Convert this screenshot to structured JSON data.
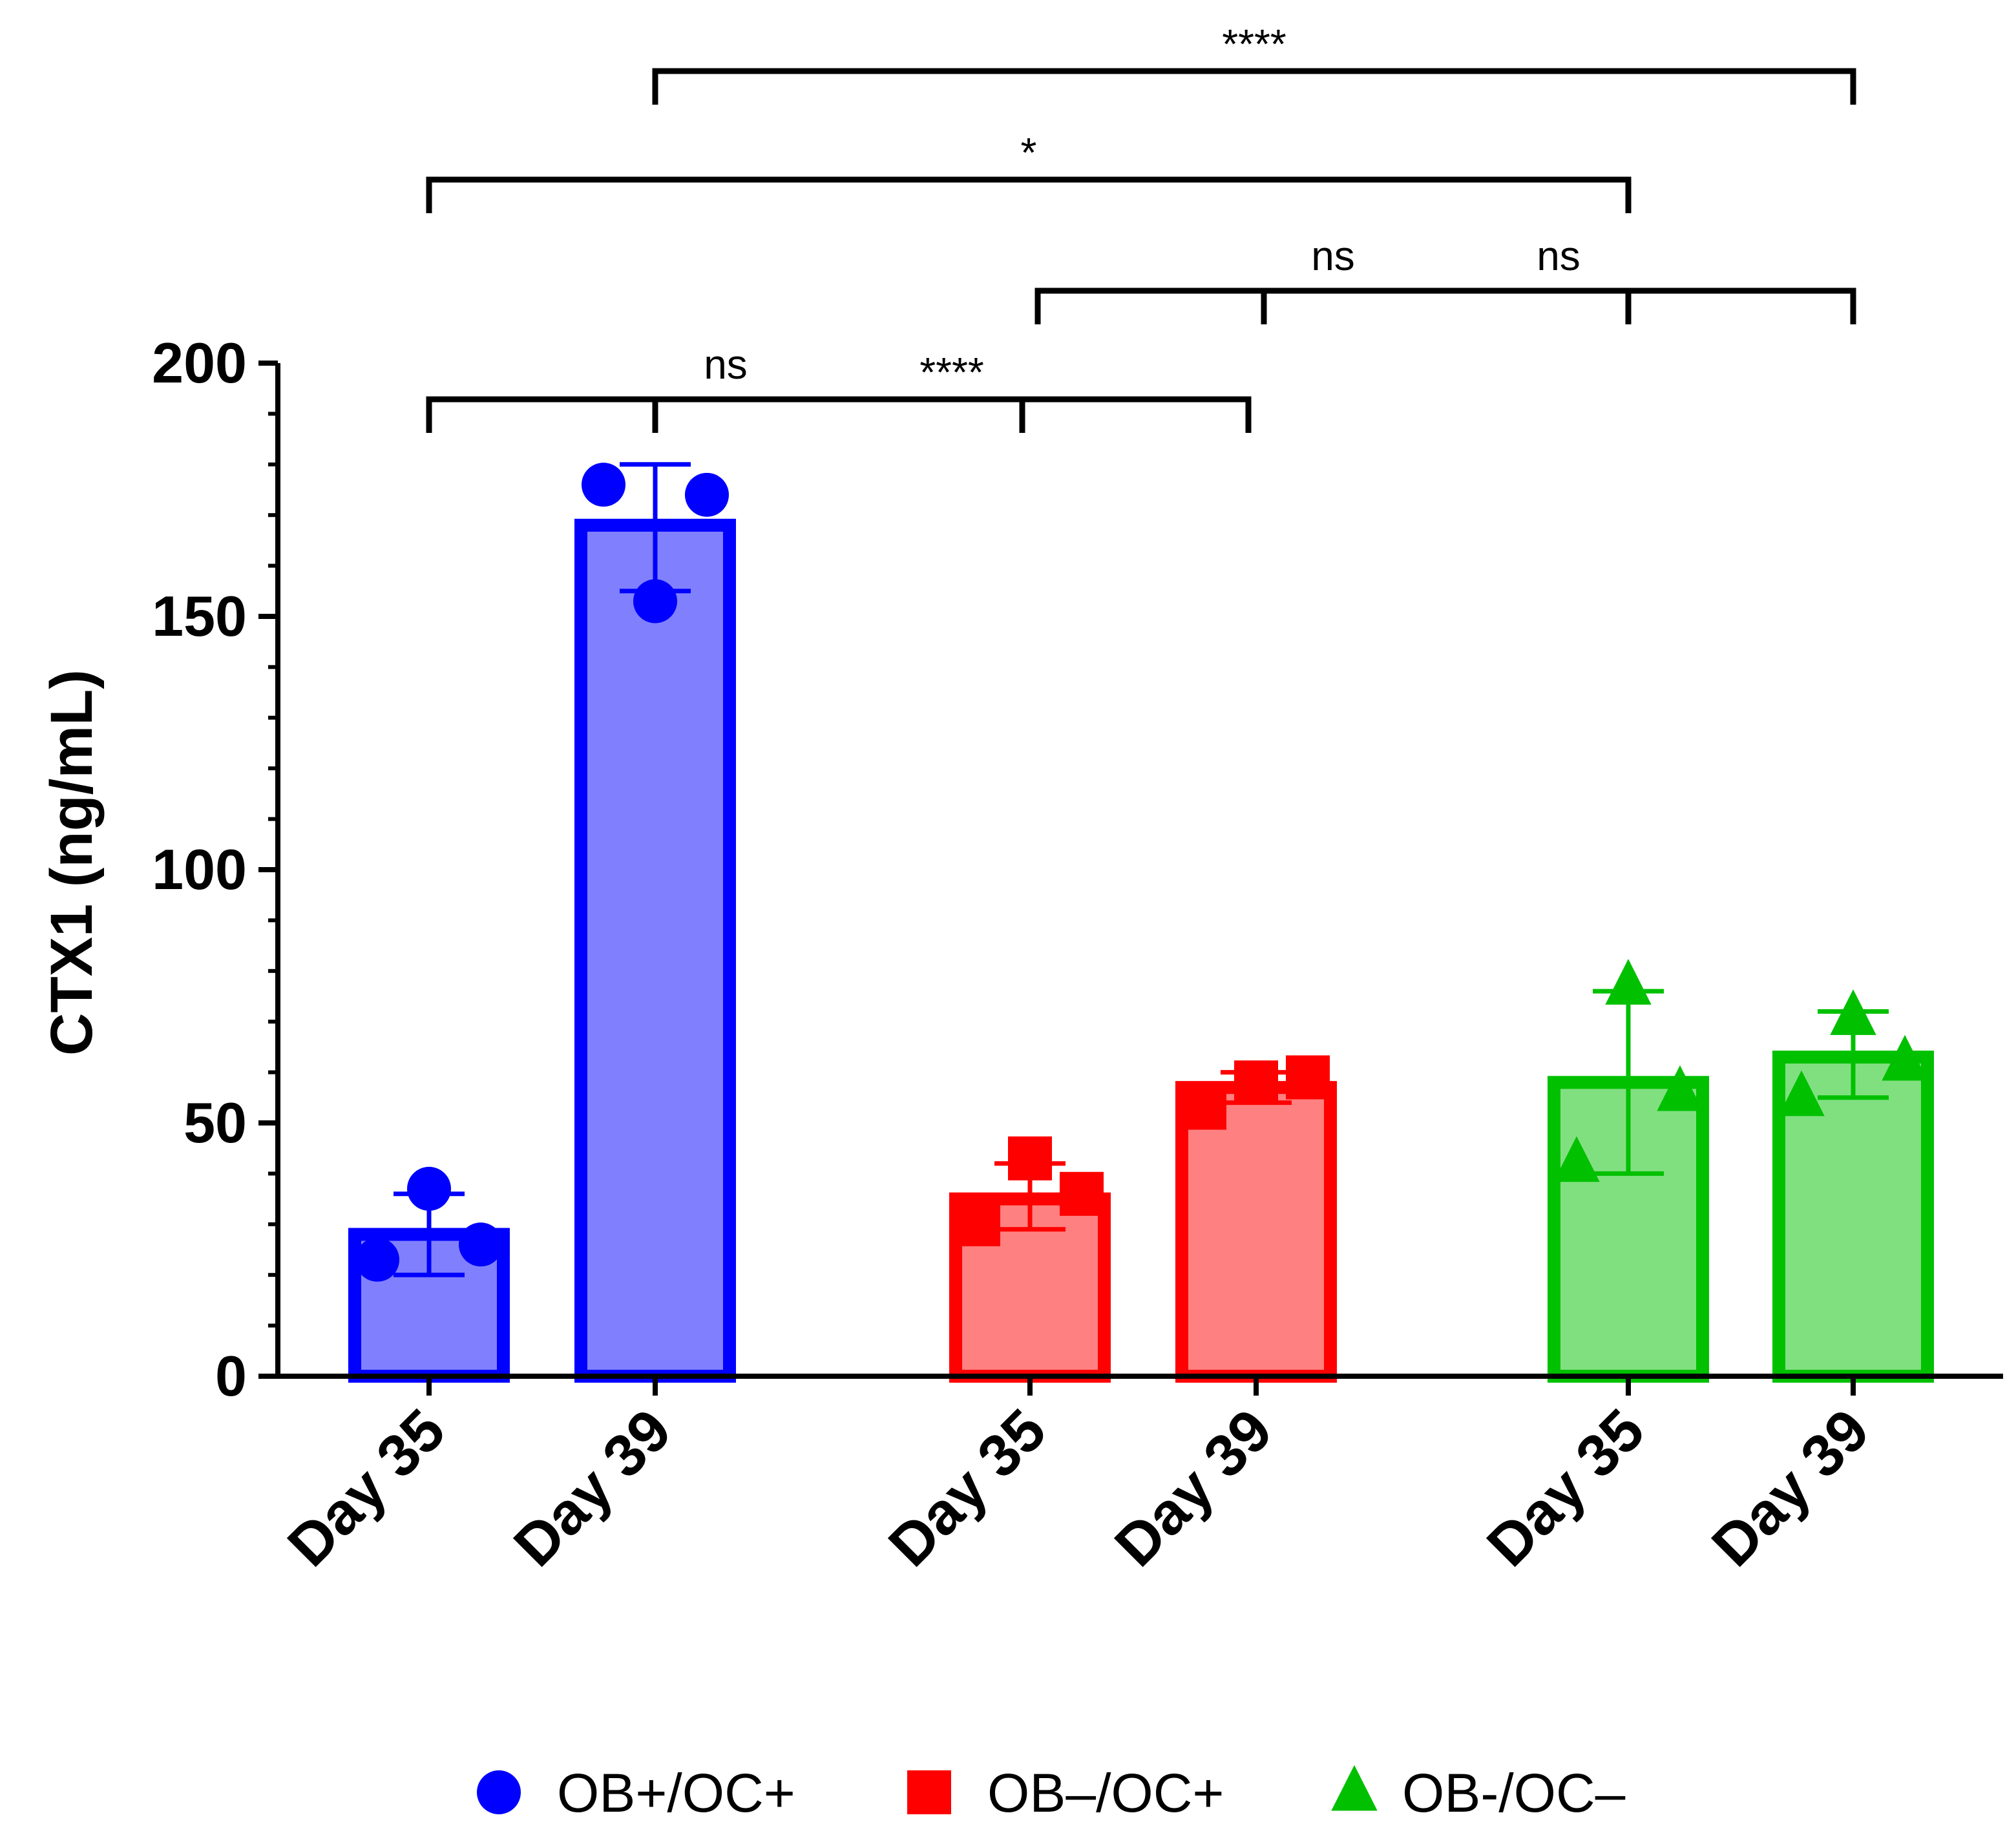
{
  "chart_data": {
    "type": "bar",
    "title": "",
    "xlabel": "",
    "ylabel": "CTX1  (ng/mL)",
    "ylim": [
      0,
      200
    ],
    "yticks": [
      0,
      50,
      100,
      150,
      200
    ],
    "grid": false,
    "legend_position": "bottom",
    "categories": [
      "Day 35",
      "Day 39",
      "Day 35",
      "Day 39",
      "Day 35",
      "Day 39"
    ],
    "series": [
      {
        "name": "OB+/OC+",
        "marker": "circle",
        "edge_color": "#0000ff",
        "fill_color": "#8080ff",
        "bars": [
          {
            "category": "Day 35",
            "mean": 28,
            "sd_low": 20,
            "sd_high": 36,
            "points": [
              23,
              26,
              37
            ]
          },
          {
            "category": "Day 39",
            "mean": 168,
            "sd_low": 155,
            "sd_high": 180,
            "points": [
              176,
              174,
              153
            ]
          }
        ]
      },
      {
        "name": "OB–/OC+",
        "marker": "square",
        "edge_color": "#ff0000",
        "fill_color": "#ff8080",
        "bars": [
          {
            "category": "Day 35",
            "mean": 35,
            "sd_low": 29,
            "sd_high": 42,
            "points": [
              30,
              36,
              43
            ]
          },
          {
            "category": "Day 39",
            "mean": 57,
            "sd_low": 54,
            "sd_high": 60,
            "points": [
              53,
              59,
              58
            ]
          }
        ]
      },
      {
        "name": "OB-/OC–",
        "marker": "triangle",
        "edge_color": "#00c000",
        "fill_color": "#80e080",
        "bars": [
          {
            "category": "Day 35",
            "mean": 58,
            "sd_low": 40,
            "sd_high": 76,
            "points": [
              42,
              56,
              77
            ]
          },
          {
            "category": "Day 39",
            "mean": 63,
            "sd_low": 55,
            "sd_high": 72,
            "points": [
              55,
              62,
              71
            ]
          }
        ]
      }
    ],
    "significance": [
      {
        "from_bar": 0,
        "to_bar": 2,
        "label": "ns"
      },
      {
        "from_bar": 2,
        "to_bar": 4,
        "label": "ns"
      },
      {
        "from_bar": 1,
        "to_bar": 3,
        "label": "****"
      },
      {
        "from_bar": 3,
        "to_bar": 5,
        "label": "ns"
      },
      {
        "from_bar": 0,
        "to_bar": 4,
        "label": "*"
      },
      {
        "from_bar": 1,
        "to_bar": 5,
        "label": "****"
      }
    ]
  }
}
